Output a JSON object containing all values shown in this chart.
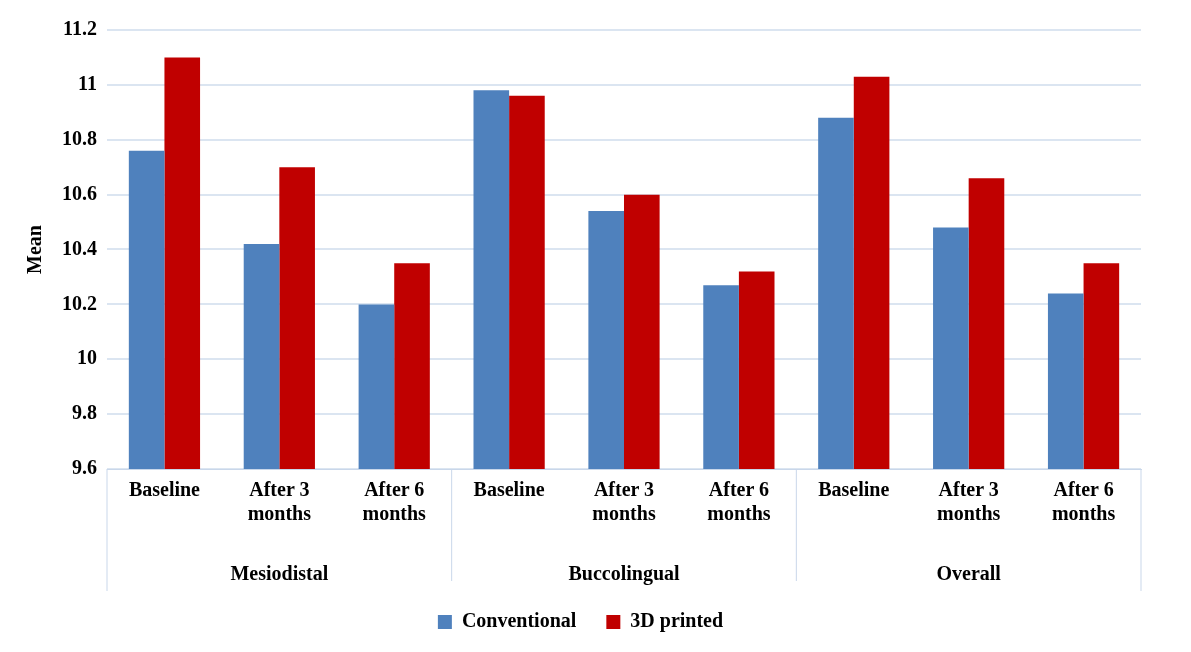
{
  "chart_data": {
    "type": "bar",
    "ylabel": "Mean",
    "categories": [
      "Baseline",
      "After 3 months",
      "After 6 months",
      "Baseline",
      "After 3 months",
      "After 6 months",
      "Baseline",
      "After 3 months",
      "After 6 months"
    ],
    "series": [
      {
        "name": "Conventional",
        "color": "#4f81bd",
        "values": [
          10.76,
          10.42,
          10.2,
          10.98,
          10.54,
          10.27,
          10.88,
          10.48,
          10.24
        ]
      },
      {
        "name": "3D printed",
        "color": "#c00000",
        "values": [
          11.1,
          10.7,
          10.35,
          10.96,
          10.6,
          10.32,
          11.03,
          10.66,
          10.35
        ]
      }
    ],
    "annotations": [
      "Mesiodistal",
      "Buccolingual",
      "Overall"
    ],
    "ylim": [
      9.6,
      11.2
    ],
    "yticks": [
      9.6,
      9.8,
      10,
      10.2,
      10.4,
      10.6,
      10.8,
      11,
      11.2
    ],
    "grid": "y",
    "legend": "bottom"
  }
}
